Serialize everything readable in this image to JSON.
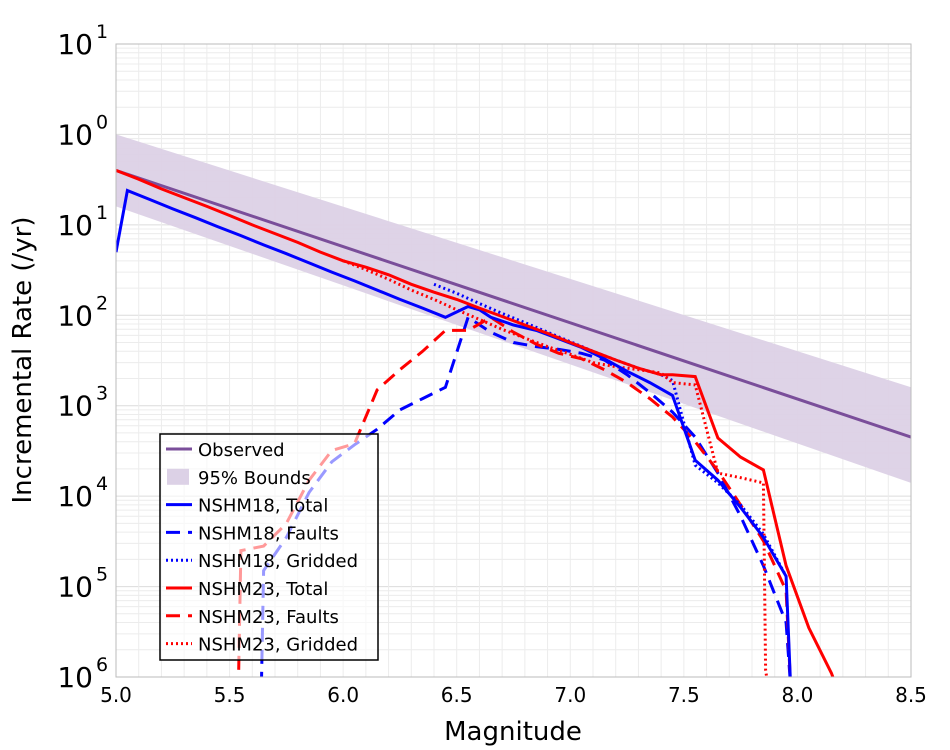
{
  "chart_data": {
    "type": "line",
    "xlabel": "Magnitude",
    "ylabel": "Incremental Rate (/yr)",
    "xlim": [
      5.0,
      8.5
    ],
    "ylim": [
      1e-06,
      10
    ],
    "y_scale": "log",
    "grid": true,
    "legend_position": "lower-left",
    "x_ticks": [
      "5.0",
      "5.5",
      "6.0",
      "6.5",
      "7.0",
      "7.5",
      "8.0",
      "8.5"
    ],
    "y_ticks": [
      {
        "value": 10,
        "base": "10",
        "exp": "1"
      },
      {
        "value": 1,
        "base": "10",
        "exp": "0"
      },
      {
        "value": 0.1,
        "base": "10",
        "exp": "1"
      },
      {
        "value": 0.01,
        "base": "10",
        "exp": "2"
      },
      {
        "value": 0.001,
        "base": "10",
        "exp": "3"
      },
      {
        "value": 0.0001,
        "base": "10",
        "exp": "4"
      },
      {
        "value": 1e-05,
        "base": "10",
        "exp": "5"
      },
      {
        "value": 1e-06,
        "base": "10",
        "exp": "6"
      }
    ],
    "bounds": {
      "name": "95% Bounds",
      "color": "#dcd1e6",
      "x": [
        5.0,
        8.5
      ],
      "upper": [
        1.0,
        0.0016
      ],
      "lower": [
        0.16,
        0.00014
      ]
    },
    "series": [
      {
        "name": "Observed",
        "color": "#7a4e9a",
        "style": "solid",
        "x": [
          5.0,
          8.5
        ],
        "y": [
          0.4,
          0.00045
        ]
      },
      {
        "name": "NSHM18, Total",
        "color": "#0000ff",
        "style": "solid",
        "x": [
          5.0,
          5.05,
          5.15,
          5.25,
          5.35,
          5.45,
          5.55,
          5.65,
          5.75,
          5.85,
          5.95,
          6.05,
          6.15,
          6.25,
          6.35,
          6.45,
          6.55,
          6.6,
          6.65,
          6.75,
          6.85,
          6.95,
          7.05,
          7.15,
          7.25,
          7.35,
          7.45,
          7.55,
          7.65,
          7.75,
          7.85,
          7.95,
          7.97
        ],
        "y": [
          0.05,
          0.24,
          0.19,
          0.15,
          0.12,
          0.095,
          0.076,
          0.06,
          0.048,
          0.038,
          0.03,
          0.024,
          0.019,
          0.015,
          0.012,
          0.0095,
          0.0125,
          0.0115,
          0.0095,
          0.0078,
          0.0068,
          0.0055,
          0.0044,
          0.0033,
          0.0024,
          0.0018,
          0.0013,
          0.00025,
          0.00015,
          7.5e-05,
          3.5e-05,
          1.3e-05,
          8e-07
        ]
      },
      {
        "name": "NSHM18, Faults",
        "color": "#0000ff",
        "style": "dashed",
        "x": [
          5.64,
          5.65,
          5.75,
          5.85,
          5.95,
          6.05,
          6.15,
          6.25,
          6.35,
          6.45,
          6.55,
          6.65,
          6.75,
          6.85,
          6.95,
          7.05,
          7.15,
          7.25,
          7.35,
          7.45,
          7.55,
          7.65,
          7.75,
          7.85,
          7.95,
          7.97
        ],
        "y": [
          8e-07,
          1.5e-05,
          3.5e-05,
          0.00011,
          0.00024,
          0.00037,
          0.00055,
          0.0009,
          0.0012,
          0.0016,
          0.0095,
          0.0065,
          0.005,
          0.0045,
          0.0042,
          0.0038,
          0.0032,
          0.0022,
          0.0014,
          0.00085,
          0.00045,
          0.00018,
          6e-05,
          1.7e-05,
          4e-06,
          8e-07
        ]
      },
      {
        "name": "NSHM18, Gridded",
        "color": "#0000ff",
        "style": "dotted",
        "x": [
          6.4,
          6.5,
          6.6,
          6.7,
          6.8,
          6.9,
          7.0,
          7.1,
          7.2,
          7.3,
          7.4,
          7.45,
          7.55,
          7.65,
          7.75,
          7.85,
          7.95
        ],
        "y": [
          0.022,
          0.0175,
          0.0135,
          0.0105,
          0.0083,
          0.0065,
          0.0051,
          0.004,
          0.0032,
          0.0026,
          0.0022,
          0.0019,
          0.00022,
          0.00014,
          8e-05,
          3.8e-05,
          1.3e-05
        ]
      },
      {
        "name": "NSHM23, Total",
        "color": "#ff0000",
        "style": "solid",
        "x": [
          5.0,
          5.1,
          5.2,
          5.3,
          5.4,
          5.5,
          5.6,
          5.7,
          5.8,
          5.9,
          6.0,
          6.1,
          6.2,
          6.3,
          6.4,
          6.5,
          6.6,
          6.7,
          6.8,
          6.9,
          7.0,
          7.1,
          7.2,
          7.3,
          7.4,
          7.45,
          7.55,
          7.65,
          7.75,
          7.85,
          7.95,
          8.05,
          8.15,
          8.17
        ],
        "y": [
          0.4,
          0.32,
          0.25,
          0.2,
          0.16,
          0.127,
          0.1,
          0.08,
          0.064,
          0.05,
          0.04,
          0.034,
          0.028,
          0.022,
          0.018,
          0.015,
          0.012,
          0.0097,
          0.0078,
          0.0063,
          0.005,
          0.004,
          0.0032,
          0.0026,
          0.0022,
          0.0022,
          0.0021,
          0.00044,
          0.00027,
          0.000195,
          1.7e-05,
          3.5e-06,
          1.1e-06,
          8e-07
        ]
      },
      {
        "name": "NSHM23, Faults",
        "color": "#ff0000",
        "style": "dashed",
        "x": [
          5.54,
          5.55,
          5.65,
          5.75,
          5.85,
          5.95,
          6.05,
          6.15,
          6.25,
          6.35,
          6.45,
          6.55,
          6.65,
          6.75,
          6.85,
          6.95,
          7.05,
          7.15,
          7.25,
          7.35,
          7.45,
          7.55,
          7.65,
          7.75,
          7.85,
          7.95,
          7.97
        ],
        "y": [
          1.2e-06,
          2.5e-05,
          2.8e-05,
          5e-05,
          0.00015,
          0.00032,
          0.00038,
          0.0015,
          0.0025,
          0.004,
          0.0068,
          0.0068,
          0.0095,
          0.0065,
          0.0048,
          0.0038,
          0.0033,
          0.0025,
          0.0018,
          0.0012,
          0.00075,
          0.0004,
          0.00019,
          8e-05,
          3.2e-05,
          9e-06,
          8e-07
        ]
      },
      {
        "name": "NSHM23, Gridded",
        "color": "#ff0000",
        "style": "dotted",
        "x": [
          6.0,
          6.1,
          6.2,
          6.3,
          6.4,
          6.5,
          6.6,
          6.7,
          6.8,
          6.9,
          7.0,
          7.1,
          7.2,
          7.3,
          7.4,
          7.45,
          7.55,
          7.65,
          7.75,
          7.85,
          7.86,
          7.87
        ],
        "y": [
          0.04,
          0.032,
          0.025,
          0.019,
          0.015,
          0.0115,
          0.009,
          0.007,
          0.0056,
          0.0045,
          0.0037,
          0.003,
          0.0027,
          0.0025,
          0.0023,
          0.0018,
          0.0017,
          0.00018,
          0.00016,
          0.00014,
          1.2e-06,
          8e-07
        ]
      }
    ]
  }
}
